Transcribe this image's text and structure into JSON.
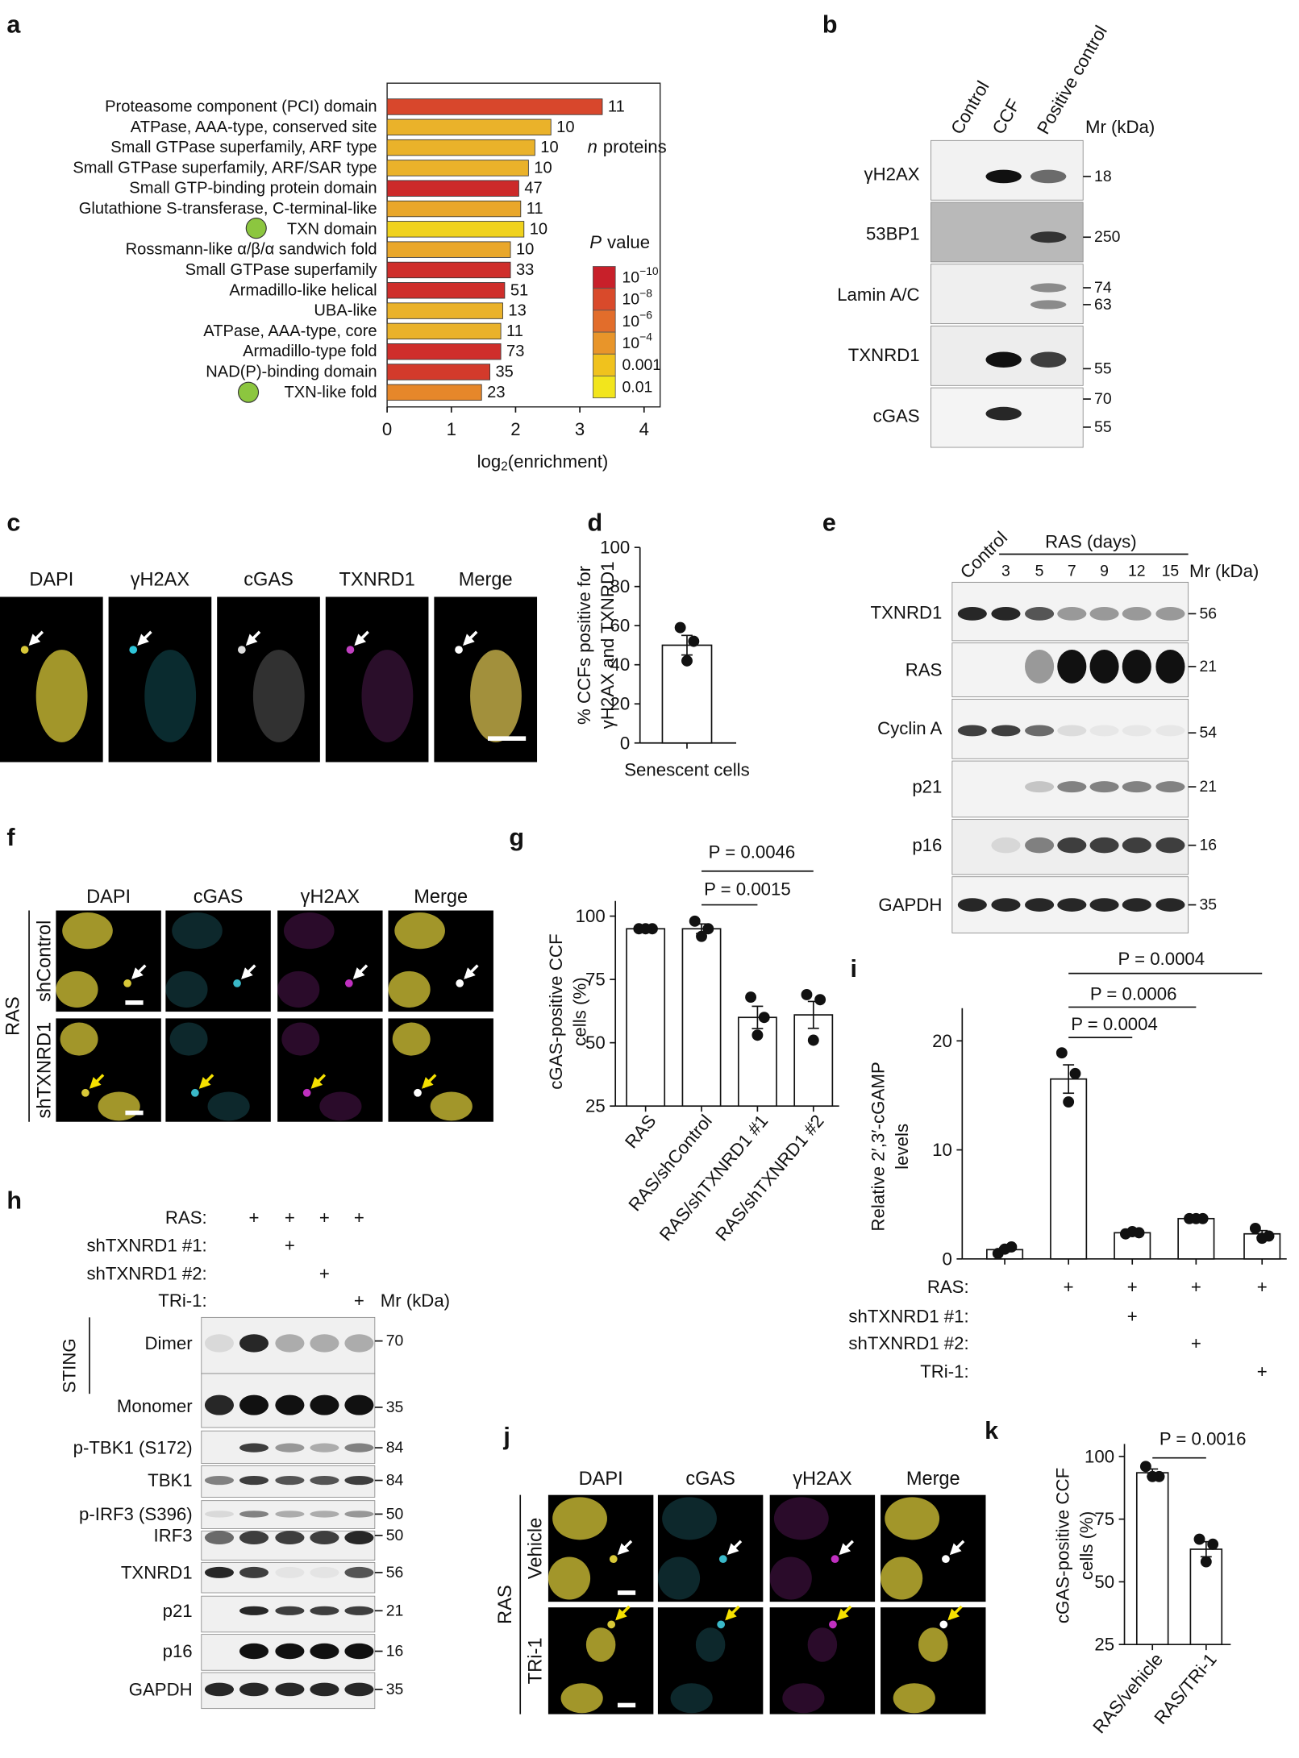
{
  "panel_labels": [
    "a",
    "b",
    "c",
    "d",
    "e",
    "f",
    "g",
    "h",
    "i",
    "j",
    "k"
  ],
  "chart_data": [
    {
      "type": "bar",
      "orientation": "horizontal",
      "categories": [
        "Proteasome component (PCI) domain",
        "ATPase, AAA-type, conserved site",
        "Small GTPase superfamily, ARF type",
        "Small GTPase superfamily, ARF/SAR type",
        "Small GTP-binding protein domain",
        "Glutathione S-transferase, C-terminal-like",
        "TXN domain",
        "Rossmann-like α/β/α sandwich fold",
        "Small GTPase superfamily",
        "Armadillo-like helical",
        "UBA-like",
        "ATPase, AAA-type, core",
        "Armadillo-type fold",
        "NAD(P)-binding domain",
        "TXN-like fold"
      ],
      "values": [
        3.35,
        2.55,
        2.3,
        2.2,
        2.05,
        2.08,
        2.13,
        1.92,
        1.92,
        1.83,
        1.8,
        1.77,
        1.77,
        1.6,
        1.47
      ],
      "colors": [
        "#d8472c",
        "#eab22a",
        "#eab22a",
        "#eab22a",
        "#cc2a2a",
        "#e9a72a",
        "#f0d21d",
        "#e9a72a",
        "#cf2e2b",
        "#cf2e2b",
        "#eab22a",
        "#eab22a",
        "#cf2e2b",
        "#d33a2b",
        "#e6872a"
      ],
      "n_proteins": [
        11,
        10,
        10,
        10,
        47,
        11,
        10,
        10,
        33,
        51,
        13,
        11,
        73,
        35,
        23
      ],
      "n_proteins_title": [
        "n",
        "proteins"
      ],
      "xlabel": [
        "log",
        "2",
        "(enrichment)"
      ],
      "xlim": [
        0,
        4.25
      ],
      "xticks": [
        0,
        1,
        2,
        3,
        4
      ],
      "legend": {
        "title": [
          "P",
          "value"
        ],
        "items": [
          {
            "color": "#c8202a",
            "label": "10",
            "exponent": "−10"
          },
          {
            "color": "#d94a2b",
            "label": "10",
            "exponent": "−8"
          },
          {
            "color": "#e26d2b",
            "label": "10",
            "exponent": "−6"
          },
          {
            "color": "#e8952a",
            "label": "10",
            "exponent": "−4"
          },
          {
            "color": "#f0c21d",
            "label": "0.001"
          },
          {
            "color": "#f2e51c",
            "label": "0.01"
          }
        ]
      }
    },
    {
      "type": "bar",
      "categories": [
        "Senescent cells"
      ],
      "values": [
        50
      ],
      "errors": [
        5
      ],
      "points": [
        [
          59,
          52,
          42
        ]
      ],
      "color": "#ffffff",
      "ylabel": [
        "% CCFs positive for",
        "γH2AX and TXNRD1"
      ],
      "ylim": [
        0,
        100
      ],
      "yticks": [
        0,
        20,
        40,
        60,
        80,
        100
      ]
    },
    {
      "type": "bar",
      "categories": [
        "RAS",
        "RAS/shControl",
        "RAS/shTXNRD1 #1",
        "RAS/shTXNRD1 #2"
      ],
      "values": [
        95,
        95,
        60,
        61
      ],
      "errors": [
        0.3,
        1.9,
        4.4,
        5.3
      ],
      "points": [
        [
          95,
          95,
          95
        ],
        [
          98,
          95,
          92
        ],
        [
          68,
          60,
          53
        ],
        [
          69,
          67,
          51
        ]
      ],
      "color": "#ffffff",
      "ylabel": [
        "cGAS-positive CCF",
        "cells (%)"
      ],
      "ylim": [
        25,
        106
      ],
      "yticks": [
        25,
        50,
        75,
        100
      ],
      "annotations": [
        "P = 0.0046",
        "P = 0.0015"
      ]
    },
    {
      "type": "bar",
      "categories": [
        null,
        null,
        null,
        null,
        null
      ],
      "values": [
        0.85,
        16.5,
        2.4,
        3.7,
        2.3
      ],
      "errors": [
        0.2,
        1.3,
        0.1,
        0.05,
        0.3
      ],
      "points": [
        [
          0.5,
          1.1,
          0.9
        ],
        [
          18.9,
          17,
          14.4
        ],
        [
          2.3,
          2.4,
          2.5
        ],
        [
          3.7,
          3.7,
          3.7
        ],
        [
          2.8,
          2.1,
          1.9
        ]
      ],
      "color": "#ffffff",
      "ylabel": [
        "Relative 2′,3′-cGAMP",
        "levels"
      ],
      "ylim": [
        0,
        23
      ],
      "yticks": [
        0,
        10,
        20
      ],
      "annotations": [
        "P = 0.0004",
        "P = 0.0006",
        "P = 0.0004"
      ],
      "conditions": {
        "symbol": "+",
        "rows": [
          {
            "label": "RAS:",
            "present": [
              false,
              true,
              true,
              true,
              true
            ]
          },
          {
            "label": "shTXNRD1 #1:",
            "present": [
              false,
              false,
              true,
              false,
              false
            ]
          },
          {
            "label": "shTXNRD1 #2:",
            "present": [
              false,
              false,
              false,
              true,
              false
            ]
          },
          {
            "label": "TRi-1:",
            "present": [
              false,
              false,
              false,
              false,
              true
            ]
          }
        ]
      }
    },
    {
      "type": "bar",
      "categories": [
        "RAS/vehicle",
        "RAS/TRi-1"
      ],
      "values": [
        93.5,
        63
      ],
      "errors": [
        1.5,
        3
      ],
      "points": [
        [
          96,
          92,
          92
        ],
        [
          67,
          65,
          58
        ]
      ],
      "color": "#ffffff",
      "ylabel": [
        "cGAS-positive CCF",
        "cells (%)"
      ],
      "ylim": [
        25,
        105
      ],
      "yticks": [
        25,
        50,
        75,
        100
      ],
      "annotations": [
        "P = 0.0016"
      ]
    }
  ],
  "blots": [
    {
      "columns": [
        "Control",
        "CCF",
        "Positive control"
      ],
      "mr_label": "Mr (kDa)",
      "rows": [
        {
          "label": "γH2AX",
          "markers": [
            18
          ]
        },
        {
          "label": "53BP1",
          "markers": [
            250
          ]
        },
        {
          "label": "Lamin A/C",
          "markers": [
            74,
            63
          ]
        },
        {
          "label": "TXNRD1",
          "markers": [
            55
          ]
        },
        {
          "label": "cGAS",
          "markers": [
            70,
            55
          ]
        }
      ]
    },
    {
      "columns": [
        "Control"
      ],
      "group_label": "RAS (days)",
      "lanes": [
        3,
        5,
        7,
        9,
        12,
        15
      ],
      "mr_label": "Mr (kDa)",
      "rows": [
        {
          "label": "TXNRD1",
          "markers": [
            56
          ]
        },
        {
          "label": "RAS",
          "markers": [
            21
          ]
        },
        {
          "label": "Cyclin A",
          "markers": [
            54
          ]
        },
        {
          "label": "p21",
          "markers": [
            21
          ]
        },
        {
          "label": "p16",
          "markers": [
            16
          ]
        },
        {
          "label": "GAPDH",
          "markers": [
            35
          ]
        }
      ]
    },
    {
      "conditions": {
        "symbol": "+",
        "rows": [
          {
            "label": "RAS:",
            "present": [
              false,
              true,
              true,
              true,
              true
            ]
          },
          {
            "label": "shTXNRD1 #1:",
            "present": [
              false,
              false,
              true,
              false,
              false
            ]
          },
          {
            "label": "shTXNRD1 #2:",
            "present": [
              false,
              false,
              false,
              true,
              false
            ]
          },
          {
            "label": "TRi-1:",
            "present": [
              false,
              false,
              false,
              false,
              true
            ]
          }
        ]
      },
      "mr_label": "Mr (kDa)",
      "group_label": "STING",
      "rows": [
        {
          "label": "Dimer",
          "markers": [
            70
          ]
        },
        {
          "label": "Monomer",
          "markers": [
            35
          ]
        },
        {
          "label": "p-TBK1 (S172)",
          "markers": [
            84
          ]
        },
        {
          "label": "TBK1",
          "markers": [
            84
          ]
        },
        {
          "label": "p-IRF3 (S396)",
          "markers": [
            50
          ]
        },
        {
          "label": "IRF3",
          "markers": [
            50
          ]
        },
        {
          "label": "TXNRD1",
          "markers": [
            56
          ]
        },
        {
          "label": "p21",
          "markers": [
            21
          ]
        },
        {
          "label": "p16",
          "markers": [
            16
          ]
        },
        {
          "label": "GAPDH",
          "markers": [
            35
          ]
        }
      ]
    }
  ],
  "images": [
    {
      "channels": [
        "DAPI",
        "γH2AX",
        "cGAS",
        "TXNRD1",
        "Merge"
      ]
    },
    {
      "channels": [
        "DAPI",
        "cGAS",
        "γH2AX",
        "Merge"
      ],
      "group_label": "RAS",
      "rows": [
        "shControl",
        "shTXNRD1"
      ]
    },
    {
      "channels": [
        "DAPI",
        "cGAS",
        "γH2AX",
        "Merge"
      ],
      "group_label": "RAS",
      "rows": [
        "Vehicle",
        "TRi-1"
      ]
    }
  ]
}
